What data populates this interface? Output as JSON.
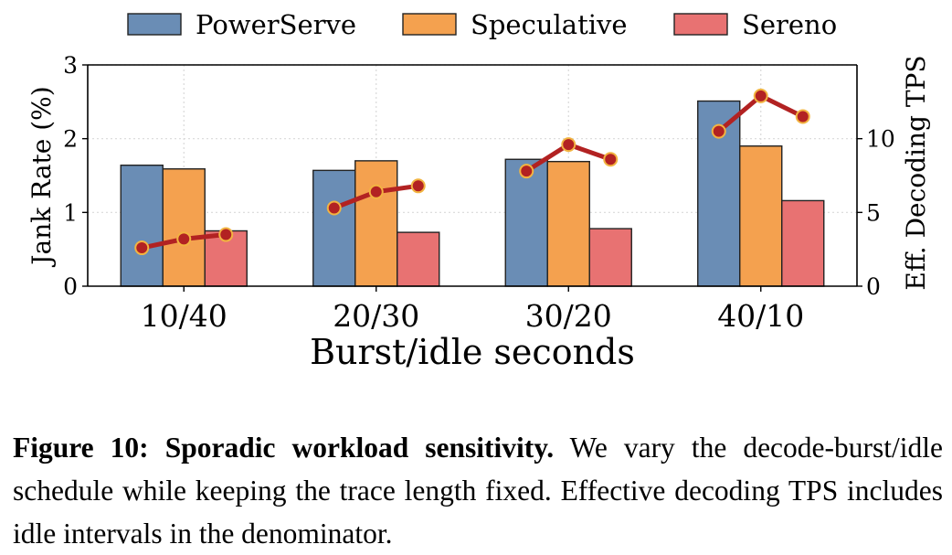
{
  "chart_data": {
    "type": "bar",
    "categories": [
      "10/40",
      "20/30",
      "30/20",
      "40/10"
    ],
    "xlabel": "Burst/idle seconds",
    "ylabel": "Jank Rate (%)",
    "ylim": [
      0,
      3
    ],
    "yticks": [
      0,
      1,
      2,
      3
    ],
    "series": [
      {
        "name": "PowerServe",
        "values": [
          1.64,
          1.57,
          1.72,
          2.51
        ],
        "color": "#6a8db5"
      },
      {
        "name": "Speculative",
        "values": [
          1.59,
          1.7,
          1.69,
          1.9
        ],
        "color": "#f4a14f"
      },
      {
        "name": "Sereno",
        "values": [
          0.75,
          0.73,
          0.78,
          1.16
        ],
        "color": "#e87272"
      }
    ],
    "secondary_axis": {
      "ylabel": "Eff. Decoding TPS",
      "ylim": [
        0,
        15
      ],
      "yticks": [
        0,
        5,
        10
      ],
      "line_color": "#b22222",
      "marker_edge_color": "#f2b441",
      "values": [
        [
          2.6,
          3.2,
          3.5
        ],
        [
          5.3,
          6.4,
          6.8
        ],
        [
          7.8,
          9.6,
          8.6
        ],
        [
          10.5,
          12.9,
          11.5
        ]
      ]
    },
    "legend": {
      "placement": "top"
    },
    "grid": true
  },
  "caption": {
    "label": "Figure 10:",
    "title": "Sporadic workload sensitivity.",
    "text": "We vary the decode-burst/idle schedule while keeping the trace length fixed. Effective decoding TPS includes idle intervals in the denominator."
  }
}
